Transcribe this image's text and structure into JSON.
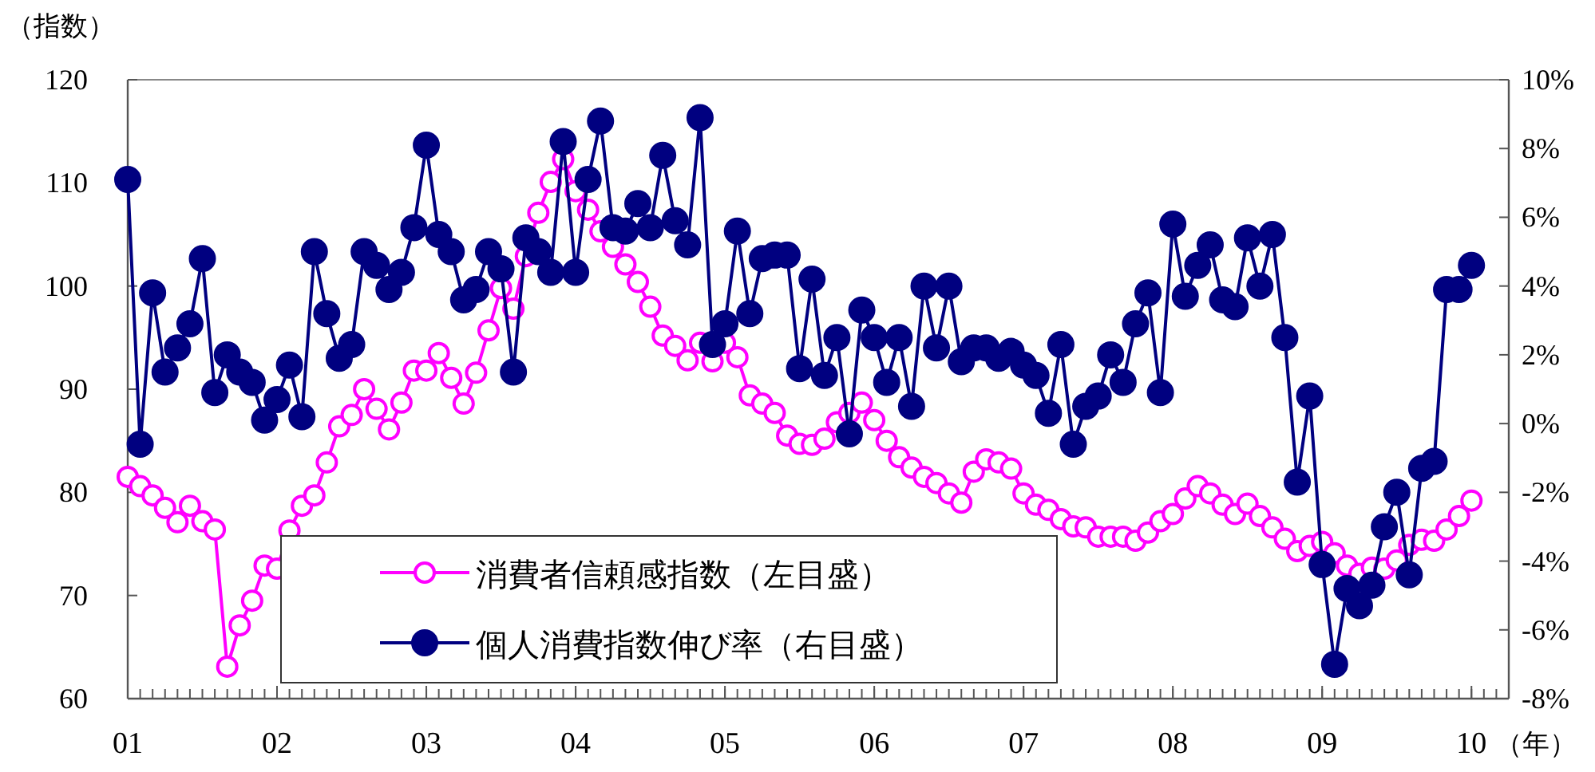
{
  "chart_data": {
    "type": "line",
    "ylabel": "（指数）",
    "xlabel": "（年）",
    "x": [
      "2001-01",
      "2001-02",
      "2001-03",
      "2001-04",
      "2001-05",
      "2001-06",
      "2001-07",
      "2001-08",
      "2001-09",
      "2001-10",
      "2001-11",
      "2001-12",
      "2002-01",
      "2002-02",
      "2002-03",
      "2002-04",
      "2002-05",
      "2002-06",
      "2002-07",
      "2002-08",
      "2002-09",
      "2002-10",
      "2002-11",
      "2002-12",
      "2003-01",
      "2003-02",
      "2003-03",
      "2003-04",
      "2003-05",
      "2003-06",
      "2003-07",
      "2003-08",
      "2003-09",
      "2003-10",
      "2003-11",
      "2003-12",
      "2004-01",
      "2004-02",
      "2004-03",
      "2004-04",
      "2004-05",
      "2004-06",
      "2004-07",
      "2004-08",
      "2004-09",
      "2004-10",
      "2004-11",
      "2004-12",
      "2005-01",
      "2005-02",
      "2005-03",
      "2005-04",
      "2005-05",
      "2005-06",
      "2005-07",
      "2005-08",
      "2005-09",
      "2005-10",
      "2005-11",
      "2005-12",
      "2006-01",
      "2006-02",
      "2006-03",
      "2006-04",
      "2006-05",
      "2006-06",
      "2006-07",
      "2006-08",
      "2006-09",
      "2006-10",
      "2006-11",
      "2006-12",
      "2007-01",
      "2007-02",
      "2007-03",
      "2007-04",
      "2007-05",
      "2007-06",
      "2007-07",
      "2007-08",
      "2007-09",
      "2007-10",
      "2007-11",
      "2007-12",
      "2008-01",
      "2008-02",
      "2008-03",
      "2008-04",
      "2008-05",
      "2008-06",
      "2008-07",
      "2008-08",
      "2008-09",
      "2008-10",
      "2008-11",
      "2008-12",
      "2009-01",
      "2009-02",
      "2009-03",
      "2009-04",
      "2009-05",
      "2009-06",
      "2009-07",
      "2009-08",
      "2009-09",
      "2009-10",
      "2009-11",
      "2009-12",
      "2010-01"
    ],
    "xlim": [
      "2001-01",
      "2010-04"
    ],
    "xticks": [
      {
        "value": "2001-01",
        "label": "01"
      },
      {
        "value": "2002-01",
        "label": "02"
      },
      {
        "value": "2003-01",
        "label": "03"
      },
      {
        "value": "2004-01",
        "label": "04"
      },
      {
        "value": "2005-01",
        "label": "05"
      },
      {
        "value": "2006-01",
        "label": "06"
      },
      {
        "value": "2007-01",
        "label": "07"
      },
      {
        "value": "2008-01",
        "label": "08"
      },
      {
        "value": "2009-01",
        "label": "09"
      },
      {
        "value": "2010-01",
        "label": "10"
      }
    ],
    "ylim": [
      60,
      120
    ],
    "yticks": [
      60,
      70,
      80,
      90,
      100,
      110,
      120
    ],
    "y2lim": [
      -8,
      10
    ],
    "y2ticks": [
      {
        "value": -8,
        "label": "-8%"
      },
      {
        "value": -6,
        "label": "-6%"
      },
      {
        "value": -4,
        "label": "-4%"
      },
      {
        "value": -2,
        "label": "-2%"
      },
      {
        "value": 0,
        "label": "0%"
      },
      {
        "value": 2,
        "label": "2%"
      },
      {
        "value": 4,
        "label": "4%"
      },
      {
        "value": 6,
        "label": "6%"
      },
      {
        "value": 8,
        "label": "8%"
      },
      {
        "value": 10,
        "label": "10%"
      }
    ],
    "legend": "bottom left",
    "grid": false,
    "marker": "circle",
    "series": [
      {
        "name": "消費者信頼感指数（左目盛）",
        "color": "#ff00ff",
        "values": [
          81.5,
          80.6,
          79.7,
          78.5,
          77.1,
          78.7,
          77.2,
          76.4,
          63.1,
          67.1,
          69.5,
          72.9,
          72.6,
          76.3,
          78.7,
          79.7,
          82.9,
          86.4,
          87.5,
          90.0,
          88.1,
          86.1,
          88.7,
          91.8,
          91.8,
          93.5,
          91.1,
          88.6,
          91.6,
          95.7,
          99.8,
          97.8,
          102.9,
          107.1,
          110.1,
          112.3,
          109.2,
          107.4,
          105.3,
          103.8,
          102.1,
          100.4,
          98.0,
          95.2,
          94.2,
          92.8,
          94.5,
          92.7,
          94.5,
          93.1,
          89.4,
          88.6,
          87.7,
          85.5,
          84.7,
          84.6,
          85.2,
          86.8,
          87.7,
          88.7,
          87.0,
          85.0,
          83.4,
          82.4,
          81.5,
          80.9,
          79.9,
          79.0,
          82.0,
          83.2,
          82.9,
          82.3,
          79.9,
          78.8,
          78.3,
          77.4,
          76.7,
          76.6,
          75.7,
          75.7,
          75.7,
          75.3,
          76.1,
          77.2,
          77.9,
          79.4,
          80.6,
          79.9,
          78.8,
          77.9,
          78.9,
          77.7,
          76.6,
          75.5,
          74.3,
          74.8,
          75.2,
          74.1,
          72.9,
          72.1,
          72.7,
          72.6,
          73.4,
          74.9,
          75.4,
          75.3,
          76.4,
          77.7,
          79.2
        ]
      },
      {
        "name": "個人消費指数伸び率（右目盛）",
        "color": "#000080",
        "axis": "y2",
        "values": [
          7.1,
          -0.6,
          3.8,
          1.5,
          2.2,
          2.9,
          4.8,
          0.9,
          2.0,
          1.5,
          1.2,
          0.1,
          0.7,
          1.7,
          0.2,
          5.0,
          3.2,
          1.9,
          2.3,
          5.0,
          4.6,
          3.9,
          4.4,
          5.7,
          8.1,
          5.5,
          5.0,
          3.6,
          3.9,
          5.0,
          4.5,
          1.5,
          5.4,
          5.0,
          4.4,
          8.2,
          4.4,
          7.1,
          8.8,
          5.7,
          5.6,
          6.4,
          5.7,
          7.8,
          5.9,
          5.2,
          8.9,
          2.3,
          2.9,
          5.6,
          3.2,
          4.8,
          4.9,
          4.9,
          1.6,
          4.2,
          1.4,
          2.5,
          -0.3,
          3.3,
          2.5,
          1.2,
          2.5,
          0.5,
          4.0,
          2.2,
          4.0,
          1.8,
          2.2,
          2.2,
          1.9,
          2.1,
          1.7,
          1.4,
          0.3,
          2.3,
          -0.6,
          0.5,
          0.8,
          2.0,
          1.2,
          2.9,
          3.8,
          0.9,
          5.8,
          3.7,
          4.6,
          5.2,
          3.6,
          3.4,
          5.4,
          4.0,
          5.5,
          2.5,
          -1.7,
          0.8,
          -4.1,
          -7.0,
          -4.8,
          -5.3,
          -4.7,
          -3.0,
          -2.0,
          -4.4,
          -1.3,
          -1.1,
          3.9,
          3.9,
          4.6
        ]
      }
    ]
  }
}
